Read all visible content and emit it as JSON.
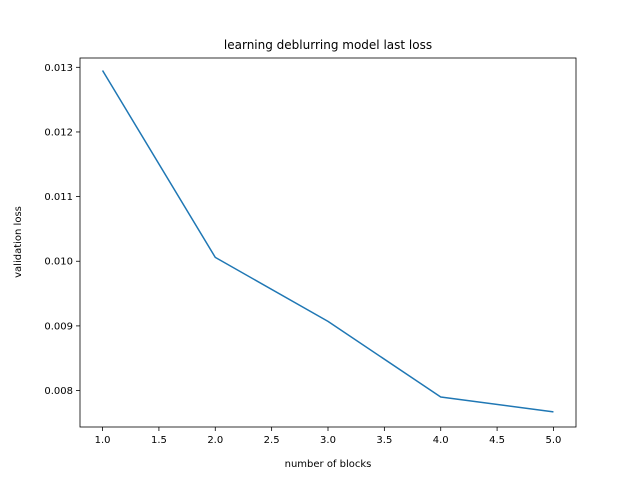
{
  "chart_data": {
    "type": "line",
    "title": "learning deblurring model last loss",
    "xlabel": "number of blocks",
    "ylabel": "validation loss",
    "x": [
      1,
      2,
      3,
      4,
      5
    ],
    "series": [
      {
        "values": [
          0.01295,
          0.01006,
          0.00907,
          0.0079,
          0.00767
        ],
        "color": "#1f77b4"
      }
    ],
    "xlim": [
      0.8,
      5.2
    ],
    "ylim": [
      0.007436,
      0.013144
    ],
    "xticks": [
      1.0,
      1.5,
      2.0,
      2.5,
      3.0,
      3.5,
      4.0,
      4.5,
      5.0
    ],
    "xtick_labels": [
      "1.0",
      "1.5",
      "2.0",
      "2.5",
      "3.0",
      "3.5",
      "4.0",
      "4.5",
      "5.0"
    ],
    "yticks": [
      0.008,
      0.009,
      0.01,
      0.011,
      0.012,
      0.013
    ],
    "ytick_labels": [
      "0.008",
      "0.009",
      "0.010",
      "0.011",
      "0.012",
      "0.013"
    ],
    "grid": false,
    "legend": "none"
  }
}
